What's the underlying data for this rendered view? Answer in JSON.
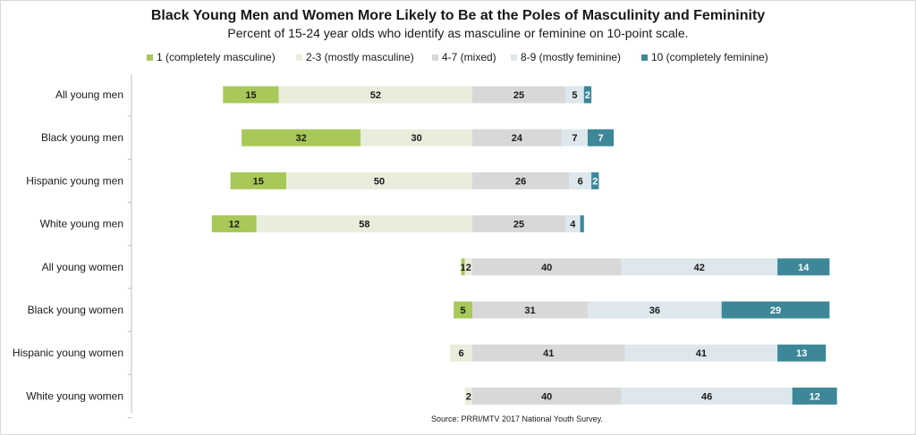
{
  "chart_data": {
    "type": "bar",
    "orientation": "horizontal",
    "stacked": true,
    "title": "Black Young Men and Women More Likely to Be at the Poles of Masculinity and Femininity",
    "subtitle": "Percent of 15-24 year olds who identify as masculine or feminine on 10-point scale.",
    "source": "Source: PRRI/MTV 2017 National Youth Survey.",
    "legend_position": "top",
    "categories": [
      "All young men",
      "Black young men",
      "Hispanic young men",
      "White young men",
      "All young women",
      "Black young women",
      "Hispanic young women",
      "White young women"
    ],
    "series": [
      {
        "name": "1 (completely masculine)",
        "color": "#a8c85a",
        "values": [
          15,
          32,
          15,
          12,
          1,
          5,
          0,
          0
        ]
      },
      {
        "name": "2-3 (mostly masculine)",
        "color": "#e9eddc",
        "values": [
          52,
          30,
          50,
          58,
          2,
          0,
          6,
          2
        ]
      },
      {
        "name": "4-7 (mixed)",
        "color": "#d8d8d8",
        "values": [
          25,
          24,
          26,
          25,
          40,
          31,
          41,
          40
        ]
      },
      {
        "name": "8-9 (mostly feminine)",
        "color": "#dde7ec",
        "values": [
          5,
          7,
          6,
          4,
          42,
          36,
          41,
          46
        ]
      },
      {
        "name": "10 (completely feminine)",
        "color": "#3d8799",
        "values": [
          2,
          7,
          2,
          1,
          14,
          29,
          13,
          12
        ]
      }
    ],
    "data_labels": [
      [
        "15",
        "52",
        "25",
        "5",
        "2"
      ],
      [
        "32",
        "30",
        "24",
        "7",
        "7"
      ],
      [
        "15",
        "50",
        "26",
        "6",
        "2"
      ],
      [
        "12",
        "58",
        "25",
        "4",
        ""
      ],
      [
        "1",
        "2",
        "40",
        "42",
        "14"
      ],
      [
        "5",
        "",
        "31",
        "36",
        "29"
      ],
      [
        "",
        "6",
        "41",
        "41",
        "13"
      ],
      [
        "",
        "2",
        "40",
        "46",
        "12"
      ]
    ],
    "grid": false,
    "xaxis_visible": false
  }
}
